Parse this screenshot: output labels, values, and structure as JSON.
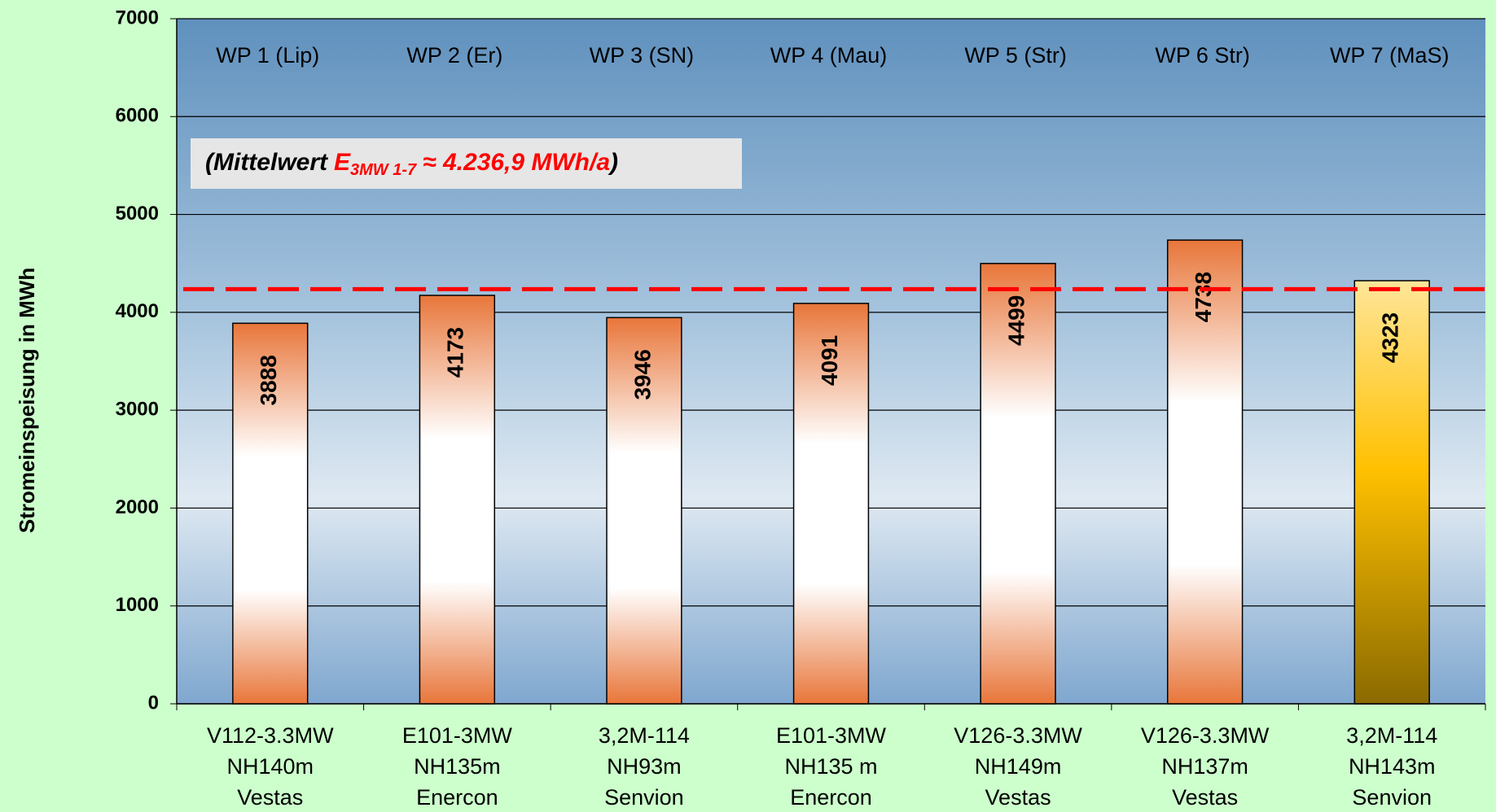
{
  "chart_data": {
    "type": "bar",
    "y_label": "Stromeinspeisung in MWh",
    "categories": [
      [
        "V112-3.3MW",
        "NH140m",
        "Vestas"
      ],
      [
        "E101-3MW",
        "NH135m",
        "Enercon"
      ],
      [
        "3,2M-114",
        "NH93m",
        "Senvion"
      ],
      [
        "E101-3MW",
        "NH135 m",
        "Enercon"
      ],
      [
        "V126-3.3MW",
        "NH149m",
        "Vestas"
      ],
      [
        "V126-3.3MW",
        "NH137m",
        "Vestas"
      ],
      [
        "3,2M-114",
        "NH143m",
        "Senvion"
      ]
    ],
    "top_labels": [
      "WP 1 (Lip)",
      "WP 2 (Er)",
      "WP 3 (SN)",
      "WP 4 (Mau)",
      "WP 5 (Str)",
      "WP 6 Str)",
      "WP 7 (MaS)"
    ],
    "values": [
      3888,
      4173,
      3946,
      4091,
      4499,
      4738,
      4323
    ],
    "colors": [
      "#e8763a",
      "#e8763a",
      "#e8763a",
      "#e8763a",
      "#e8763a",
      "#e8763a",
      "#ffc000"
    ],
    "mean_value": 4236.9,
    "mean_color": "#ff0000",
    "annotation": {
      "prefix": "(Mittelwert",
      "symbol": "E",
      "subscript": "3MW 1-7",
      "value_text": "≈ 4.236,9 MWh/a",
      "suffix": ")"
    },
    "ylim": [
      0,
      7000
    ],
    "yticks": [
      0,
      1000,
      2000,
      3000,
      4000,
      5000,
      6000,
      7000
    ],
    "grid": true
  }
}
